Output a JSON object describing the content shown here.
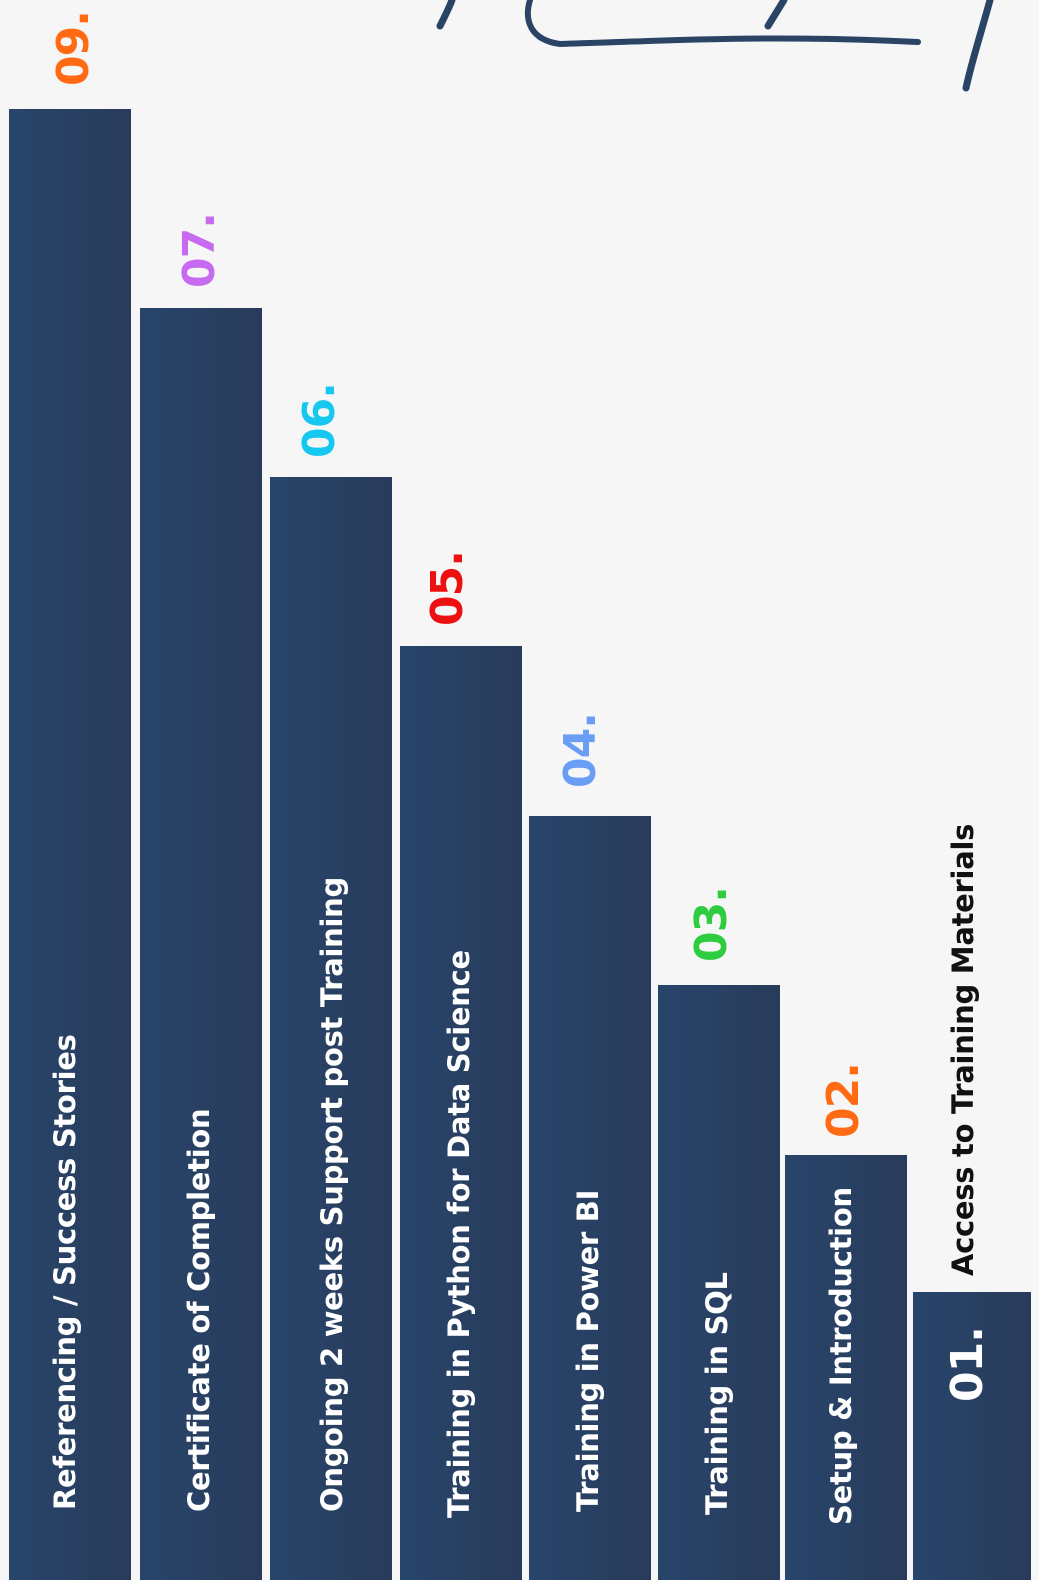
{
  "colors": {
    "bar": "#283f62",
    "background": "#f6f6f6"
  },
  "steps": [
    {
      "number": "01.",
      "label": "Access to Training Materials",
      "color": "#ffffff"
    },
    {
      "number": "02.",
      "label": "Setup & Introduction",
      "color": "#ff6a13"
    },
    {
      "number": "03.",
      "label": "Training in SQL",
      "color": "#2ecc40"
    },
    {
      "number": "04.",
      "label": "Training in Power BI",
      "color": "#6a9ef5"
    },
    {
      "number": "05.",
      "label": "Training in Python for Data Science",
      "color": "#ee1010"
    },
    {
      "number": "06.",
      "label": "Ongoing 2 weeks Support post Training",
      "color": "#16c8f0"
    },
    {
      "number": "07.",
      "label": "Certificate of Completion",
      "color": "#c76af0"
    },
    {
      "number": "09.",
      "label": "Referencing / Success Stories",
      "color": "#ff6a13"
    }
  ]
}
